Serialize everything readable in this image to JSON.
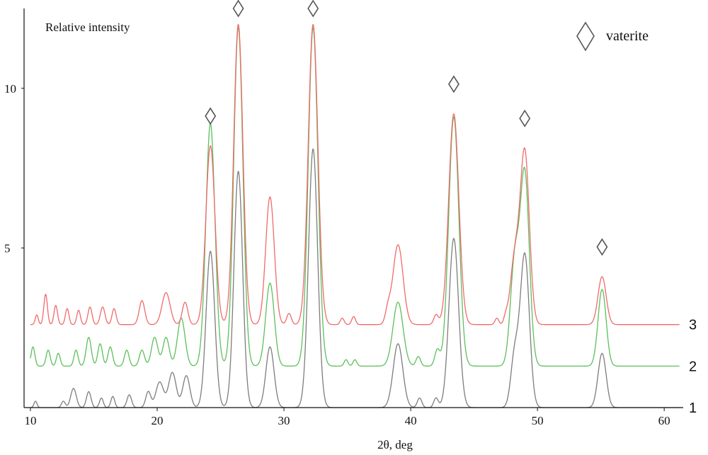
{
  "chart_data": {
    "type": "line",
    "ylabel": "Relative intensity",
    "xlabel": "2θ, deg",
    "xlim": [
      9.5,
      61.5
    ],
    "ylim": [
      0,
      12.5
    ],
    "x_ticks": [
      10,
      20,
      30,
      40,
      50,
      60
    ],
    "y_ticks": [
      5,
      10
    ],
    "grid": false,
    "legend": {
      "position": "top-right",
      "label": "vaterite",
      "marker": "diamond-outline"
    },
    "series": [
      {
        "name": "1",
        "color": "#7d7d7d",
        "offset": 0,
        "peaks": [
          {
            "x": 24.2,
            "h": 4.9,
            "w": 0.34
          },
          {
            "x": 26.4,
            "h": 7.4,
            "w": 0.34
          },
          {
            "x": 28.9,
            "h": 1.9,
            "w": 0.32
          },
          {
            "x": 32.3,
            "h": 8.1,
            "w": 0.36
          },
          {
            "x": 39.0,
            "h": 2.0,
            "w": 0.38
          },
          {
            "x": 43.4,
            "h": 5.3,
            "w": 0.38
          },
          {
            "x": 48.2,
            "h": 1.6,
            "w": 0.3
          },
          {
            "x": 49.0,
            "h": 4.8,
            "w": 0.36
          },
          {
            "x": 55.1,
            "h": 1.7,
            "w": 0.32
          }
        ],
        "background": [
          {
            "x": 10.4,
            "h": 0.2,
            "w": 0.12
          },
          {
            "x": 12.6,
            "h": 0.2,
            "w": 0.15
          },
          {
            "x": 13.4,
            "h": 0.6,
            "w": 0.22
          },
          {
            "x": 14.6,
            "h": 0.5,
            "w": 0.18
          },
          {
            "x": 15.6,
            "h": 0.3,
            "w": 0.15
          },
          {
            "x": 16.5,
            "h": 0.35,
            "w": 0.15
          },
          {
            "x": 17.8,
            "h": 0.4,
            "w": 0.18
          },
          {
            "x": 19.3,
            "h": 0.5,
            "w": 0.2
          },
          {
            "x": 20.2,
            "h": 0.8,
            "w": 0.3
          },
          {
            "x": 21.2,
            "h": 1.1,
            "w": 0.3
          },
          {
            "x": 22.3,
            "h": 1.0,
            "w": 0.28
          },
          {
            "x": 40.7,
            "h": 0.3,
            "w": 0.18
          },
          {
            "x": 42.0,
            "h": 0.3,
            "w": 0.18
          }
        ]
      },
      {
        "name": "2",
        "color": "#5cbf5c",
        "offset": 1.3,
        "peaks": [
          {
            "x": 24.2,
            "h": 7.6,
            "w": 0.36
          },
          {
            "x": 26.4,
            "h": 10.6,
            "w": 0.36
          },
          {
            "x": 28.9,
            "h": 2.6,
            "w": 0.34
          },
          {
            "x": 32.3,
            "h": 10.6,
            "w": 0.38
          },
          {
            "x": 39.0,
            "h": 2.0,
            "w": 0.4
          },
          {
            "x": 43.4,
            "h": 7.8,
            "w": 0.4
          },
          {
            "x": 48.2,
            "h": 3.2,
            "w": 0.34
          },
          {
            "x": 49.0,
            "h": 6.0,
            "w": 0.36
          },
          {
            "x": 55.1,
            "h": 2.4,
            "w": 0.32
          }
        ],
        "background": [
          {
            "x": 10.2,
            "h": 0.6,
            "w": 0.15
          },
          {
            "x": 11.4,
            "h": 0.5,
            "w": 0.16
          },
          {
            "x": 12.2,
            "h": 0.4,
            "w": 0.15
          },
          {
            "x": 13.6,
            "h": 0.5,
            "w": 0.16
          },
          {
            "x": 14.6,
            "h": 0.9,
            "w": 0.2
          },
          {
            "x": 15.5,
            "h": 0.7,
            "w": 0.18
          },
          {
            "x": 16.3,
            "h": 0.6,
            "w": 0.18
          },
          {
            "x": 17.6,
            "h": 0.5,
            "w": 0.18
          },
          {
            "x": 18.8,
            "h": 0.5,
            "w": 0.2
          },
          {
            "x": 19.8,
            "h": 0.9,
            "w": 0.25
          },
          {
            "x": 20.7,
            "h": 0.9,
            "w": 0.25
          },
          {
            "x": 21.9,
            "h": 1.5,
            "w": 0.3
          },
          {
            "x": 34.9,
            "h": 0.2,
            "w": 0.15
          },
          {
            "x": 35.6,
            "h": 0.2,
            "w": 0.15
          },
          {
            "x": 40.6,
            "h": 0.3,
            "w": 0.18
          },
          {
            "x": 42.1,
            "h": 0.5,
            "w": 0.2
          }
        ]
      },
      {
        "name": "3",
        "color": "#f06a6a",
        "offset": 2.6,
        "peaks": [
          {
            "x": 24.2,
            "h": 5.6,
            "w": 0.36
          },
          {
            "x": 26.4,
            "h": 9.4,
            "w": 0.36
          },
          {
            "x": 28.9,
            "h": 4.0,
            "w": 0.34
          },
          {
            "x": 32.3,
            "h": 9.4,
            "w": 0.38
          },
          {
            "x": 39.0,
            "h": 2.5,
            "w": 0.4
          },
          {
            "x": 43.4,
            "h": 6.6,
            "w": 0.4
          },
          {
            "x": 48.2,
            "h": 2.0,
            "w": 0.34
          },
          {
            "x": 49.0,
            "h": 5.4,
            "w": 0.36
          },
          {
            "x": 55.1,
            "h": 1.5,
            "w": 0.32
          }
        ],
        "background": [
          {
            "x": 10.5,
            "h": 0.3,
            "w": 0.12
          },
          {
            "x": 11.2,
            "h": 0.95,
            "w": 0.14
          },
          {
            "x": 12.0,
            "h": 0.6,
            "w": 0.14
          },
          {
            "x": 12.9,
            "h": 0.5,
            "w": 0.14
          },
          {
            "x": 13.8,
            "h": 0.45,
            "w": 0.14
          },
          {
            "x": 14.7,
            "h": 0.55,
            "w": 0.16
          },
          {
            "x": 15.7,
            "h": 0.55,
            "w": 0.18
          },
          {
            "x": 16.6,
            "h": 0.5,
            "w": 0.16
          },
          {
            "x": 18.8,
            "h": 0.75,
            "w": 0.22
          },
          {
            "x": 20.7,
            "h": 1.0,
            "w": 0.32
          },
          {
            "x": 22.2,
            "h": 0.7,
            "w": 0.22
          },
          {
            "x": 30.4,
            "h": 0.35,
            "w": 0.18
          },
          {
            "x": 34.6,
            "h": 0.2,
            "w": 0.15
          },
          {
            "x": 35.5,
            "h": 0.25,
            "w": 0.15
          },
          {
            "x": 38.2,
            "h": 0.4,
            "w": 0.2
          },
          {
            "x": 42.0,
            "h": 0.3,
            "w": 0.18
          },
          {
            "x": 46.8,
            "h": 0.2,
            "w": 0.15
          },
          {
            "x": 47.5,
            "h": 0.2,
            "w": 0.15
          }
        ]
      }
    ],
    "annotations": {
      "marker": "diamond",
      "meaning": "vaterite",
      "x": [
        24.2,
        26.4,
        32.3,
        43.4,
        49.0,
        55.1
      ]
    }
  }
}
